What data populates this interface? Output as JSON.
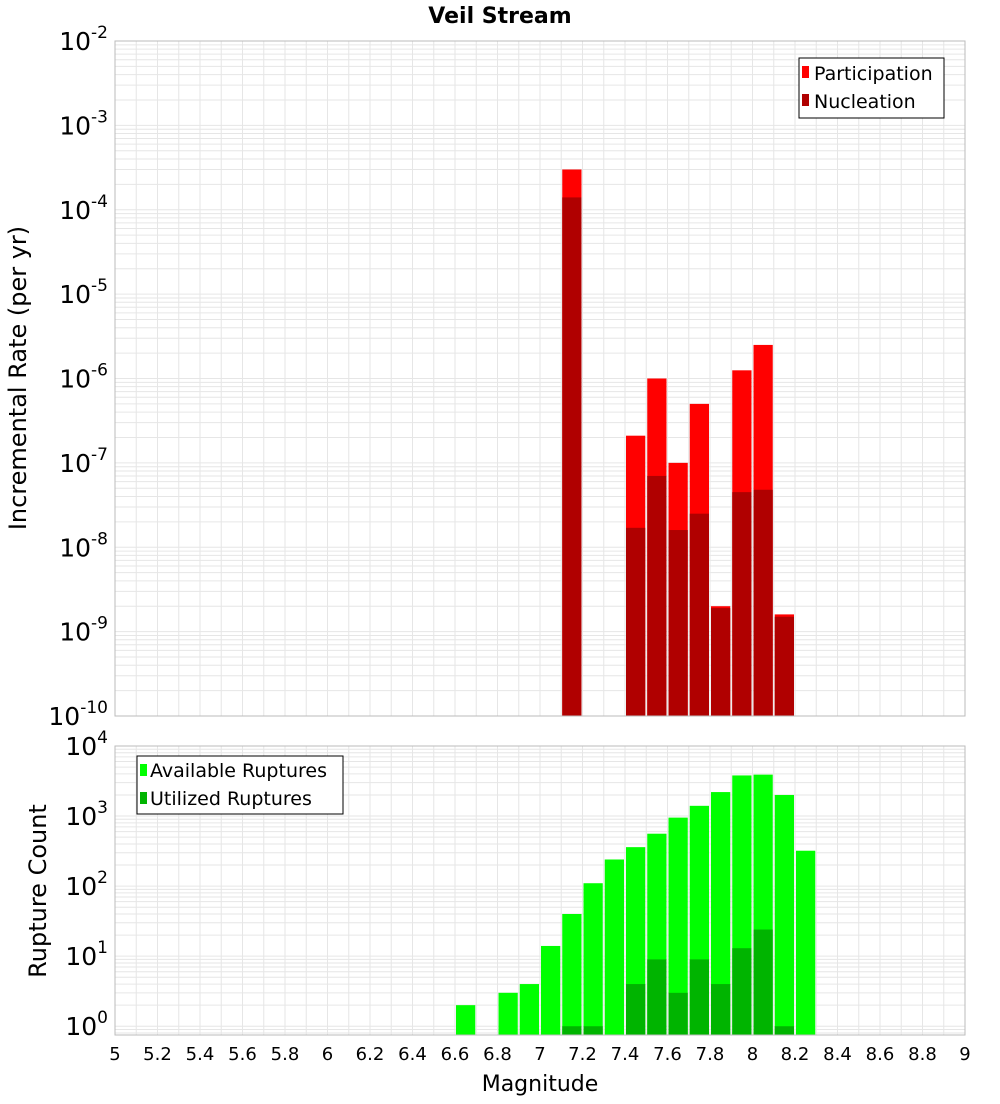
{
  "title": "Veil Stream",
  "xlabel": "Magnitude",
  "x_ticks": [
    "5",
    "5.2",
    "5.4",
    "5.6",
    "5.8",
    "6",
    "6.2",
    "6.4",
    "6.6",
    "6.8",
    "7",
    "7.2",
    "7.4",
    "7.6",
    "7.8",
    "8",
    "8.2",
    "8.4",
    "8.6",
    "8.8",
    "9"
  ],
  "colors": {
    "participation": "#ff0000",
    "nucleation": "#b00000",
    "available": "#00ff00",
    "utilized": "#00b400",
    "grid": "#e6e6e6",
    "frame": "#bbbbbb"
  },
  "chart_data": [
    {
      "type": "bar",
      "panel": "rates",
      "ylabel": "Incremental Rate (per yr)",
      "yscale": "log",
      "ylim": [
        1e-10,
        0.01
      ],
      "xlim": [
        5,
        9
      ],
      "bar_width": 0.1,
      "y_ticks": [
        {
          "value": 1e-10,
          "base": "10",
          "exp": "-10"
        },
        {
          "value": 1e-09,
          "base": "10",
          "exp": "-9"
        },
        {
          "value": 1e-08,
          "base": "10",
          "exp": "-8"
        },
        {
          "value": 1e-07,
          "base": "10",
          "exp": "-7"
        },
        {
          "value": 1e-06,
          "base": "10",
          "exp": "-6"
        },
        {
          "value": 1e-05,
          "base": "10",
          "exp": "-5"
        },
        {
          "value": 0.0001,
          "base": "10",
          "exp": "-4"
        },
        {
          "value": 0.001,
          "base": "10",
          "exp": "-3"
        },
        {
          "value": 0.01,
          "base": "10",
          "exp": "-2"
        }
      ],
      "legend": [
        "Participation",
        "Nucleation"
      ],
      "legend_position": "top-right",
      "series": [
        {
          "name": "Participation",
          "x": [
            7.15,
            7.45,
            7.55,
            7.65,
            7.75,
            7.85,
            7.95,
            8.05,
            8.15
          ],
          "values": [
            0.0003,
            2.1e-07,
            1e-06,
            1e-07,
            5e-07,
            2e-09,
            1.25e-06,
            2.5e-06,
            1.6e-09
          ]
        },
        {
          "name": "Nucleation",
          "x": [
            7.15,
            7.45,
            7.55,
            7.65,
            7.75,
            7.85,
            7.95,
            8.05,
            8.15
          ],
          "values": [
            0.00014,
            1.7e-08,
            7e-08,
            1.6e-08,
            2.5e-08,
            1.9e-09,
            4.5e-08,
            4.8e-08,
            1.5e-09
          ]
        }
      ]
    },
    {
      "type": "bar",
      "panel": "counts",
      "ylabel": "Rupture Count",
      "yscale": "log",
      "ylim": [
        0.75,
        10000
      ],
      "xlim": [
        5,
        9
      ],
      "bar_width": 0.1,
      "y_ticks": [
        {
          "value": 1,
          "base": "10",
          "exp": "0"
        },
        {
          "value": 10,
          "base": "10",
          "exp": "1"
        },
        {
          "value": 100,
          "base": "10",
          "exp": "2"
        },
        {
          "value": 1000,
          "base": "10",
          "exp": "3"
        },
        {
          "value": 10000,
          "base": "10",
          "exp": "4"
        }
      ],
      "legend": [
        "Available Ruptures",
        "Utilized Ruptures"
      ],
      "legend_position": "top-left",
      "series": [
        {
          "name": "Available Ruptures",
          "x": [
            6.65,
            6.85,
            6.95,
            7.05,
            7.15,
            7.25,
            7.35,
            7.45,
            7.55,
            7.65,
            7.75,
            7.85,
            7.95,
            8.05,
            8.15,
            8.25
          ],
          "values": [
            2,
            3,
            4,
            14,
            40,
            110,
            240,
            360,
            560,
            950,
            1400,
            2200,
            3800,
            3900,
            2000,
            320
          ]
        },
        {
          "name": "Utilized Ruptures",
          "x": [
            7.15,
            7.25,
            7.45,
            7.55,
            7.65,
            7.75,
            7.85,
            7.95,
            8.05,
            8.15
          ],
          "values": [
            1,
            1,
            4,
            9,
            3,
            9,
            4,
            13,
            24,
            1
          ]
        }
      ]
    }
  ]
}
